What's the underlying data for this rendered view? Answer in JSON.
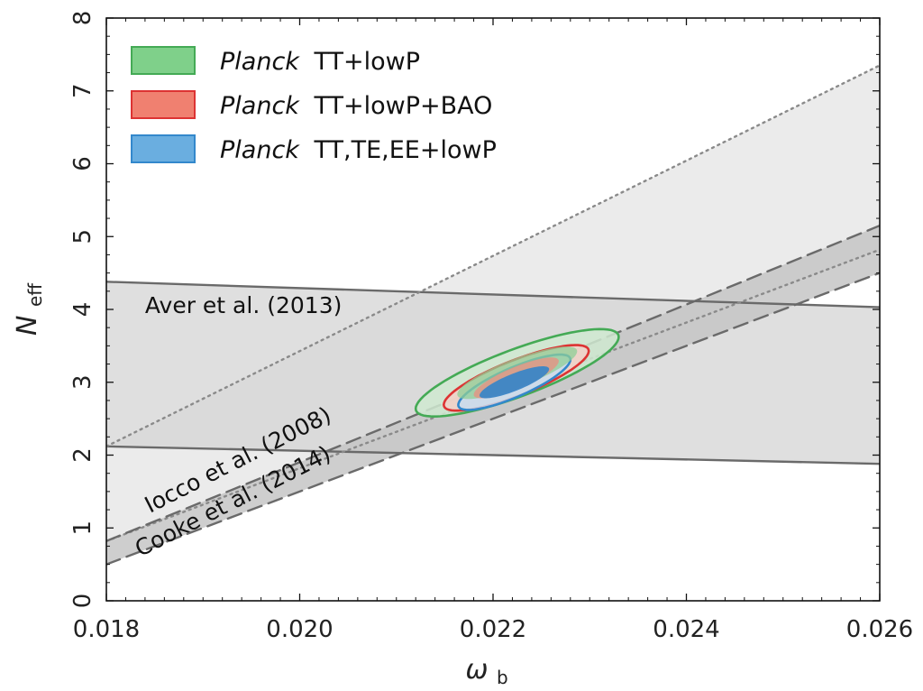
{
  "chart_data": {
    "type": "contour",
    "xlabel": "ω",
    "xlabel_sub": "b",
    "ylabel": "N",
    "ylabel_sub": "eff",
    "xlim": [
      0.018,
      0.026
    ],
    "ylim": [
      0,
      8
    ],
    "xticks": [
      "0.018",
      "0.020",
      "0.022",
      "0.024",
      "0.026"
    ],
    "xtick_values": [
      0.018,
      0.02,
      0.022,
      0.024,
      0.026
    ],
    "yticks": [
      "0",
      "1",
      "2",
      "3",
      "4",
      "5",
      "6",
      "7",
      "8"
    ],
    "ytick_values": [
      0,
      1,
      2,
      3,
      4,
      5,
      6,
      7,
      8
    ],
    "legend": {
      "position": "top-left",
      "entries": [
        {
          "italic": "Planck",
          "text": "TT+lowP",
          "color": "#44aa55"
        },
        {
          "italic": "Planck",
          "text": "TT+lowP+BAO",
          "color": "#dd3333"
        },
        {
          "italic": "Planck",
          "text": "TT,TE,EE+lowP",
          "color": "#3388cc"
        }
      ]
    },
    "bands": [
      {
        "name": "aver-band",
        "label": "Aver et al. (2013)",
        "upper": [
          [
            0.018,
            4.38
          ],
          [
            0.026,
            4.03
          ]
        ],
        "lower": [
          [
            0.018,
            2.12
          ],
          [
            0.026,
            1.88
          ]
        ],
        "fill": "#d2d2d2",
        "line_color": "#6a6a6a",
        "line_style": "solid"
      },
      {
        "name": "iocco-band",
        "label": "Iocco et al. (2008)",
        "upper": [
          [
            0.018,
            2.12
          ],
          [
            0.026,
            7.35
          ]
        ],
        "lower": [
          [
            0.018,
            0.82
          ],
          [
            0.026,
            4.82
          ]
        ],
        "fill": "#e8e8e8",
        "line_color": "#8a8a8a",
        "line_style": "dotted"
      },
      {
        "name": "cooke-band",
        "label": "Cooke et al. (2014)",
        "upper": [
          [
            0.018,
            0.82
          ],
          [
            0.026,
            5.15
          ]
        ],
        "lower": [
          [
            0.018,
            0.5
          ],
          [
            0.026,
            4.5
          ]
        ],
        "fill": "#c6c6c6",
        "line_color": "#6a6a6a",
        "line_style": "dashed"
      }
    ],
    "contours": [
      {
        "name": "TT+lowP",
        "color": "#44aa55",
        "center": [
          0.02225,
          3.13
        ],
        "outer_half_width_x": 0.00105,
        "outer_half_width_y": 0.6,
        "inner_half_width_x": 0.00062,
        "inner_half_width_y": 0.36,
        "correlation": 0.82
      },
      {
        "name": "TT+lowP+BAO",
        "color": "#dd3333",
        "center": [
          0.02224,
          3.06
        ],
        "outer_half_width_x": 0.00075,
        "outer_half_width_y": 0.45,
        "inner_half_width_x": 0.00044,
        "inner_half_width_y": 0.28,
        "correlation": 0.82
      },
      {
        "name": "TT,TE,EE+lowP",
        "color": "#3388cc",
        "center": [
          0.02222,
          3.0
        ],
        "outer_half_width_x": 0.00058,
        "outer_half_width_y": 0.38,
        "inner_half_width_x": 0.00036,
        "inner_half_width_y": 0.22,
        "correlation": 0.82
      }
    ],
    "annotations": [
      {
        "name": "aver-label",
        "text": "Aver et al. (2013)",
        "x": 0.0184,
        "y": 3.95,
        "rotation_deg": 0
      },
      {
        "name": "iocco-label",
        "text": "Iocco et al. (2008)",
        "x": 0.01845,
        "y": 1.2,
        "rotation_deg": -27
      },
      {
        "name": "cooke-label",
        "text": "Cooke et al. (2014)",
        "x": 0.01835,
        "y": 0.6,
        "rotation_deg": -27
      }
    ]
  }
}
